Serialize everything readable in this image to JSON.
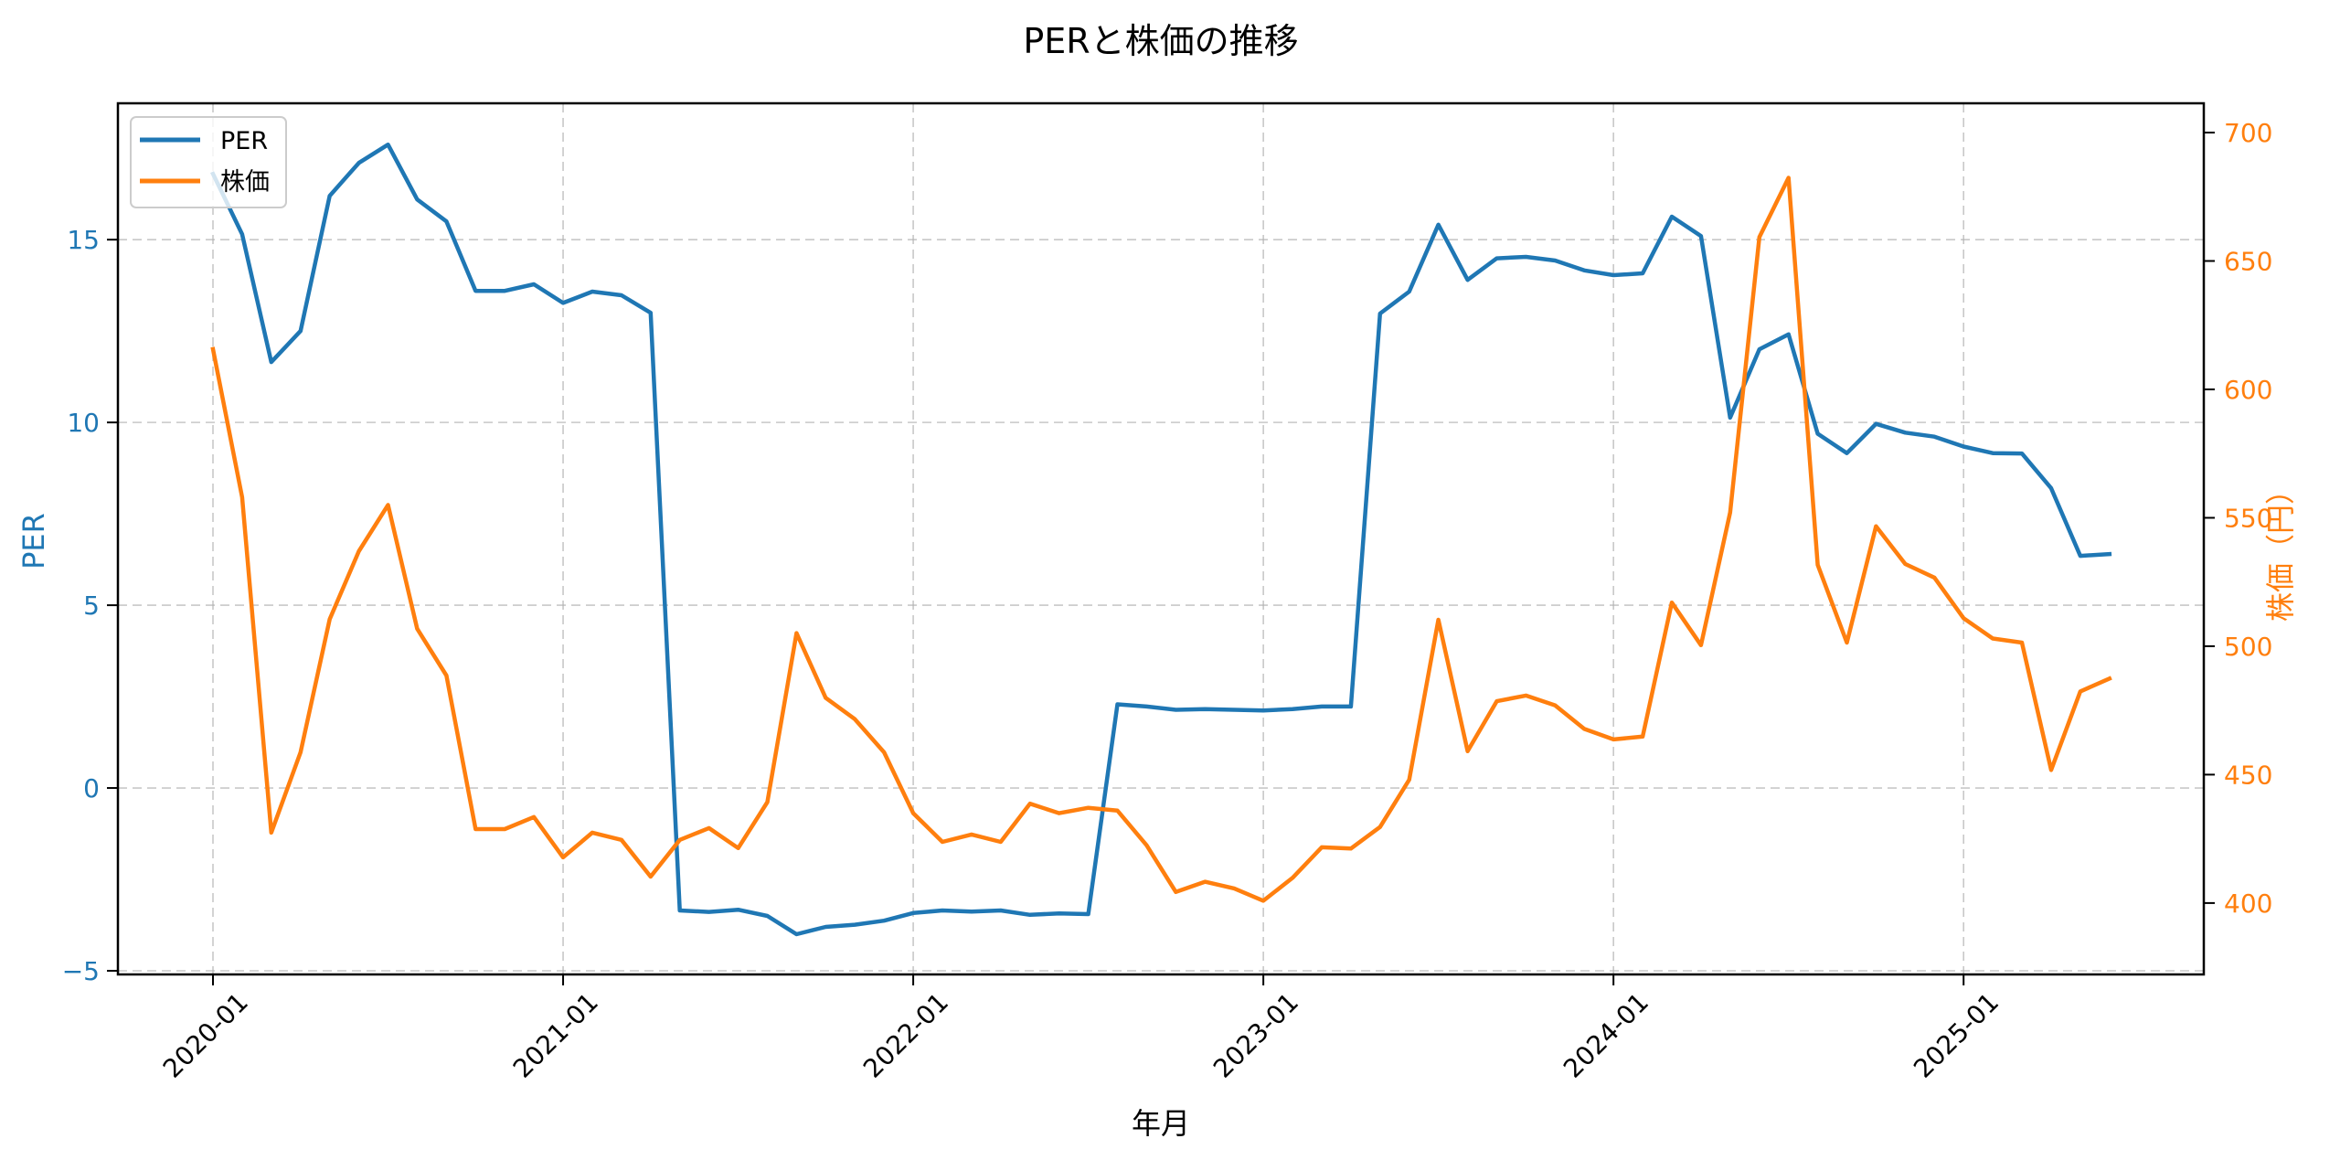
{
  "chart_data": {
    "type": "line",
    "title": "PERと株価の推移",
    "xlabel": "年月",
    "ylabel": "PER",
    "ylabel_right": "株価（円）",
    "x_ticks": [
      "2020-01",
      "2021-01",
      "2022-01",
      "2023-01",
      "2024-01",
      "2025-01"
    ],
    "y_ticks_left": [
      -5,
      0,
      5,
      10,
      15
    ],
    "y_ticks_right": [
      400,
      450,
      500,
      550,
      600,
      650,
      700
    ],
    "ylim": [
      -5.1,
      18.73
    ],
    "ylim_right": [
      372.2,
      711.4
    ],
    "grid": true,
    "legend_position": "upper left",
    "x": [
      "2020-01",
      "2020-02",
      "2020-03",
      "2020-04",
      "2020-05",
      "2020-06",
      "2020-07",
      "2020-08",
      "2020-09",
      "2020-10",
      "2020-11",
      "2020-12",
      "2021-01",
      "2021-02",
      "2021-03",
      "2021-04",
      "2021-05",
      "2021-06",
      "2021-07",
      "2021-08",
      "2021-09",
      "2021-10",
      "2021-11",
      "2021-12",
      "2022-01",
      "2022-02",
      "2022-03",
      "2022-04",
      "2022-05",
      "2022-06",
      "2022-07",
      "2022-08",
      "2022-09",
      "2022-10",
      "2022-11",
      "2022-12",
      "2023-01",
      "2023-02",
      "2023-03",
      "2023-04",
      "2023-05",
      "2023-06",
      "2023-07",
      "2023-08",
      "2023-09",
      "2023-10",
      "2023-11",
      "2023-12",
      "2024-01",
      "2024-02",
      "2024-03",
      "2024-04",
      "2024-05",
      "2024-06",
      "2024-07",
      "2024-08",
      "2024-09",
      "2024-10",
      "2024-11",
      "2024-12",
      "2025-01",
      "2025-02",
      "2025-03",
      "2025-04",
      "2025-05",
      "2025-06"
    ],
    "series": [
      {
        "name": "PER",
        "axis": "left",
        "color": "#1f77b4",
        "values": [
          16.8,
          15.15,
          11.65,
          12.5,
          16.2,
          17.1,
          17.6,
          16.1,
          15.5,
          13.6,
          13.6,
          13.78,
          13.27,
          13.58,
          13.48,
          13.0,
          -3.35,
          -3.39,
          -3.33,
          -3.5,
          -4.0,
          -3.8,
          -3.74,
          -3.63,
          -3.42,
          -3.35,
          -3.38,
          -3.35,
          -3.47,
          -3.43,
          -3.45,
          2.29,
          2.23,
          2.14,
          2.16,
          2.14,
          2.12,
          2.16,
          2.23,
          2.23,
          12.98,
          13.58,
          15.41,
          13.9,
          14.49,
          14.53,
          14.43,
          14.16,
          14.03,
          14.08,
          15.63,
          15.1,
          10.13,
          12.0,
          12.41,
          9.69,
          9.16,
          9.96,
          9.72,
          9.61,
          9.34,
          9.16,
          9.15,
          8.2,
          6.35,
          6.4
        ]
      },
      {
        "name": "株価",
        "axis": "right",
        "color": "#ff7f0e",
        "values": [
          615.7,
          558,
          427.4,
          458.7,
          510.5,
          537,
          555,
          506.8,
          488.6,
          428.8,
          428.8,
          433.5,
          417.8,
          427.4,
          424.6,
          410.3,
          424.6,
          429.2,
          421.4,
          439.3,
          505.1,
          479.9,
          471.6,
          458.7,
          435.0,
          423.8,
          426.7,
          423.8,
          438.7,
          435.0,
          437.1,
          436.0,
          422.5,
          404.3,
          408.3,
          405.7,
          400.9,
          409.8,
          421.7,
          421.2,
          429.6,
          448.0,
          510.3,
          459.1,
          478.6,
          480.8,
          477.0,
          467.8,
          463.7,
          464.8,
          517.0,
          500.4,
          552.1,
          659.3,
          682.4,
          531.7,
          501.4,
          546.7,
          532.0,
          526.7,
          510.9,
          503.0,
          501.4,
          451.8,
          482.4,
          487.4
        ]
      }
    ]
  },
  "legend": {
    "items": [
      {
        "label": "PER",
        "color": "#1f77b4"
      },
      {
        "label": "株価",
        "color": "#ff7f0e"
      }
    ]
  }
}
